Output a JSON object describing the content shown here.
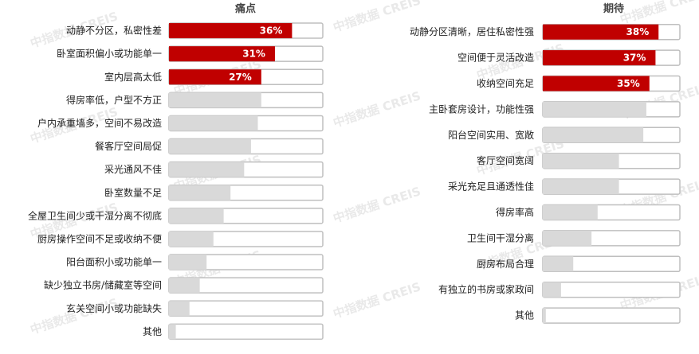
{
  "watermark": "中指数据 CREIS",
  "colors": {
    "highlight": "#c00000",
    "bar": "#d9d9d9",
    "frame": "#bfbfbf"
  },
  "chart_data": [
    {
      "type": "bar",
      "orientation": "horizontal",
      "title": "痛点",
      "xlim": [
        0,
        45
      ],
      "categories": [
        "动静不分区，私密性差",
        "卧室面积偏小或功能单一",
        "室内层高太低",
        "得房率低，户型不方正",
        "户内承重墙多，空间不易改造",
        "餐客厅空间局促",
        "采光通风不佳",
        "卧室数量不足",
        "全屋卫生间少或干湿分离不彻底",
        "厨房操作空间不足或收纳不便",
        "阳台面积小或功能单一",
        "缺少独立书房/储藏室等空间",
        "玄关空间小或功能缺失",
        "其他"
      ],
      "values": [
        36,
        31,
        27,
        27,
        26,
        24,
        22,
        18,
        16,
        13,
        11,
        9,
        6,
        2
      ],
      "data_labels": [
        "36%",
        "31%",
        "27%",
        "",
        "",
        "",
        "",
        "",
        "",
        "",
        "",
        "",
        "",
        ""
      ],
      "highlight_count": 3
    },
    {
      "type": "bar",
      "orientation": "horizontal",
      "title": "期待",
      "xlim": [
        0,
        45
      ],
      "categories": [
        "动静分区清晰，居住私密性强",
        "空间便于灵活改造",
        "收纳空间充足",
        "主卧套房设计，功能性强",
        "阳台空间实用、宽敞",
        "客厅空间宽阔",
        "采光充足且通透性佳",
        "得房率高",
        "卫生间干湿分离",
        "厨房布局合理",
        "有独立的书房或家政间",
        "其他"
      ],
      "values": [
        38,
        37,
        35,
        34,
        33,
        25,
        25,
        18,
        16,
        10,
        6,
        1
      ],
      "data_labels": [
        "38%",
        "37%",
        "35%",
        "",
        "",
        "",
        "",
        "",
        "",
        "",
        "",
        ""
      ],
      "highlight_count": 3
    }
  ]
}
